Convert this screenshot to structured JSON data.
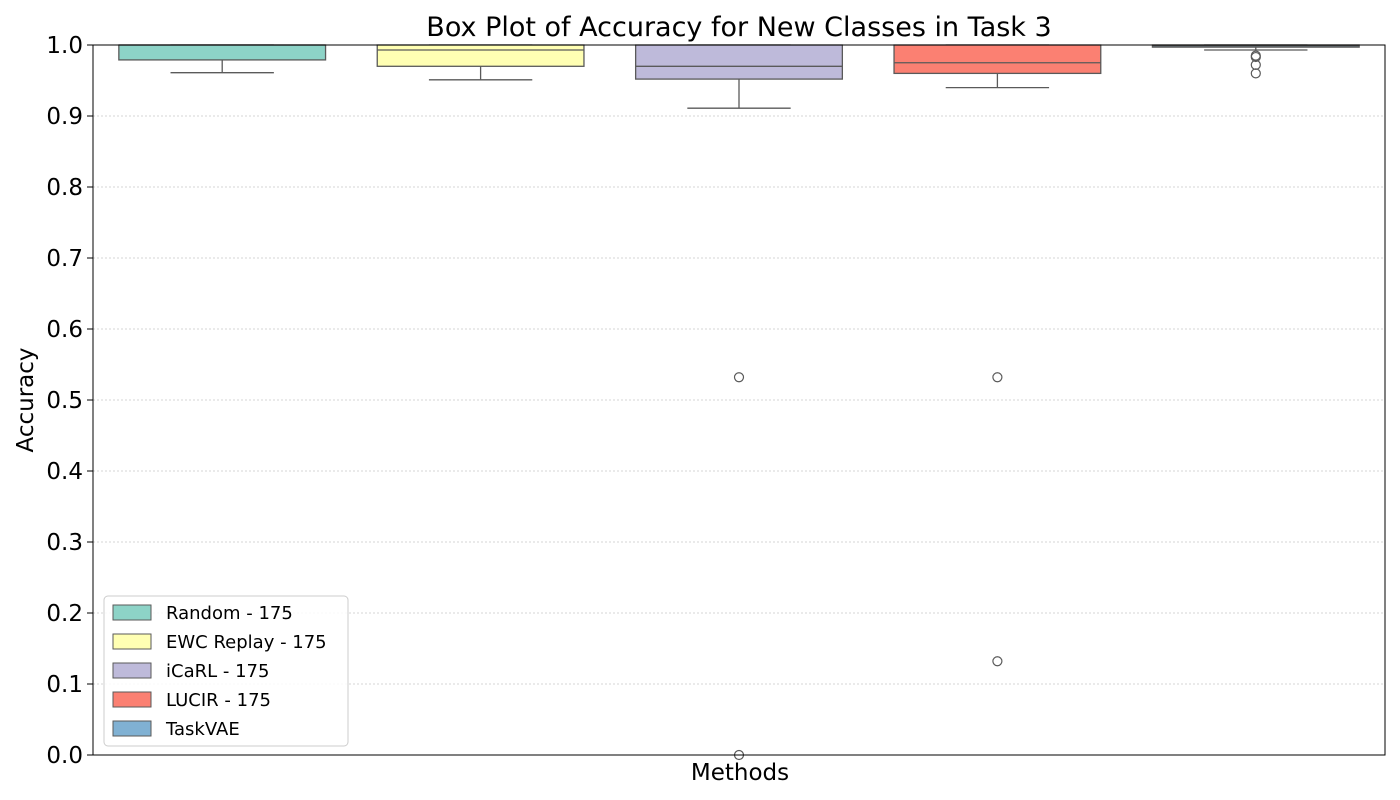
{
  "chart_data": {
    "type": "box",
    "title": "Box Plot of Accuracy for New Classes in Task 3",
    "xlabel": "Methods",
    "ylabel": "Accuracy",
    "ylim": [
      0.0,
      1.0
    ],
    "yticks": [
      "0.0",
      "0.1",
      "0.2",
      "0.3",
      "0.4",
      "0.5",
      "0.6",
      "0.7",
      "0.8",
      "0.9",
      "1.0"
    ],
    "grid": "horizontal dotted",
    "legend_position": "lower-left",
    "series": [
      {
        "name": "Random - 175",
        "color": "#8dd3c7",
        "whisker_low": 0.961,
        "q1": 0.979,
        "median": 1.0,
        "q3": 1.0,
        "whisker_high": 1.0,
        "outliers": []
      },
      {
        "name": "EWC Replay - 175",
        "color": "#ffffb3",
        "whisker_low": 0.951,
        "q1": 0.97,
        "median": 0.993,
        "q3": 1.0,
        "whisker_high": 1.0,
        "outliers": []
      },
      {
        "name": "iCaRL - 175",
        "color": "#bebada",
        "whisker_low": 0.911,
        "q1": 0.952,
        "median": 0.97,
        "q3": 1.0,
        "whisker_high": 1.0,
        "outliers": [
          0.532,
          0.0
        ]
      },
      {
        "name": "LUCIR - 175",
        "color": "#fb8072",
        "whisker_low": 0.94,
        "q1": 0.96,
        "median": 0.975,
        "q3": 1.0,
        "whisker_high": 1.0,
        "outliers": [
          0.532,
          0.132
        ]
      },
      {
        "name": "TaskVAE",
        "color": "#80b1d3",
        "whisker_low": 0.993,
        "q1": 0.997,
        "median": 0.999,
        "q3": 1.0,
        "whisker_high": 1.0,
        "outliers": [
          0.985,
          0.983,
          0.972,
          0.96
        ]
      }
    ]
  }
}
